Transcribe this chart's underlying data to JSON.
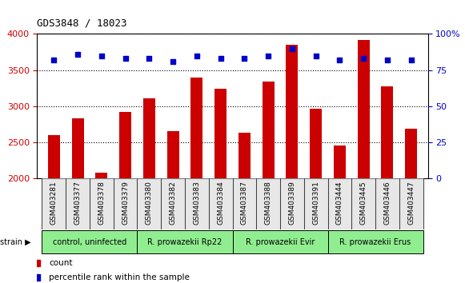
{
  "title": "GDS3848 / 18023",
  "samples": [
    "GSM403281",
    "GSM403377",
    "GSM403378",
    "GSM403379",
    "GSM403380",
    "GSM403382",
    "GSM403383",
    "GSM403384",
    "GSM403387",
    "GSM403388",
    "GSM403389",
    "GSM403391",
    "GSM403444",
    "GSM403445",
    "GSM403446",
    "GSM403447"
  ],
  "counts": [
    2600,
    2830,
    2080,
    2920,
    3110,
    2650,
    3400,
    3240,
    2630,
    3340,
    3850,
    2960,
    2450,
    3920,
    3270,
    2690
  ],
  "percentiles": [
    82,
    86,
    85,
    83,
    83,
    81,
    85,
    83,
    83,
    85,
    90,
    85,
    82,
    83,
    82,
    82
  ],
  "ylim_left": [
    2000,
    4000
  ],
  "ylim_right": [
    0,
    100
  ],
  "yticks_left": [
    2000,
    2500,
    3000,
    3500,
    4000
  ],
  "yticks_right": [
    0,
    25,
    50,
    75,
    100
  ],
  "bar_color": "#cc0000",
  "dot_color": "#0000cc",
  "strain_groups": [
    {
      "label": "control, uninfected",
      "start": 0,
      "end": 3,
      "color": "#90ee90"
    },
    {
      "label": "R. prowazekii Rp22",
      "start": 4,
      "end": 7,
      "color": "#90ee90"
    },
    {
      "label": "R. prowazekii Evir",
      "start": 8,
      "end": 11,
      "color": "#90ee90"
    },
    {
      "label": "R. prowazekii Erus",
      "start": 12,
      "end": 15,
      "color": "#90ee90"
    }
  ],
  "legend_count_color": "#cc0000",
  "legend_dot_color": "#0000cc",
  "legend_count_label": "count",
  "legend_dot_label": "percentile rank within the sample"
}
